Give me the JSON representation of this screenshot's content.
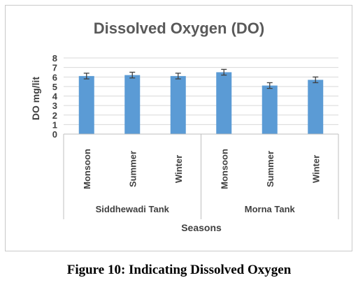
{
  "caption": "Figure 10: Indicating Dissolved Oxygen",
  "colors": {
    "bar": "#5b9bd5",
    "grid": "#d9d9d9",
    "error_bar": "#404040"
  },
  "chart_data": {
    "type": "bar",
    "title": "Dissolved Oxygen (DO)",
    "ylabel": "DO mg/lit",
    "xlabel": "Seasons",
    "ylim": [
      0,
      8
    ],
    "yticks": [
      "0",
      "1",
      "2",
      "3",
      "4",
      "5",
      "6",
      "7",
      "8"
    ],
    "grid": true,
    "groups": [
      {
        "name": "Siddhewadi Tank",
        "categories": [
          "Monsoon",
          "Summer",
          "Winter"
        ],
        "values": [
          6.1,
          6.2,
          6.1
        ],
        "errors": [
          0.3,
          0.3,
          0.3
        ]
      },
      {
        "name": "Morna Tank",
        "categories": [
          "Monsoon",
          "Summer",
          "Winter"
        ],
        "values": [
          6.5,
          5.1,
          5.7
        ],
        "errors": [
          0.3,
          0.3,
          0.3
        ]
      }
    ]
  }
}
